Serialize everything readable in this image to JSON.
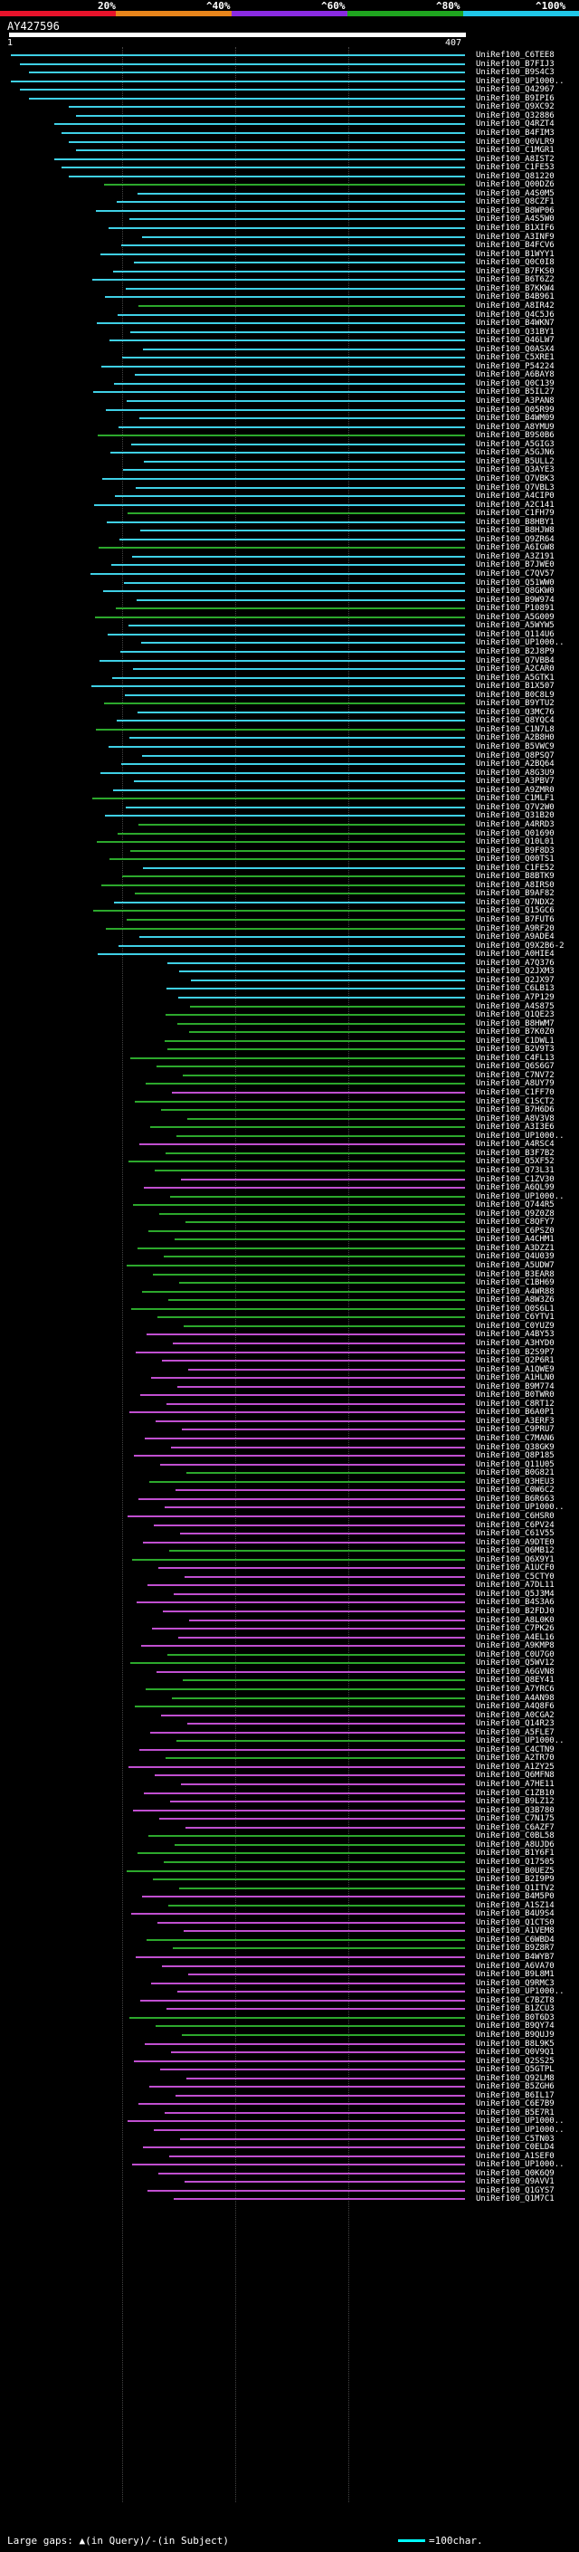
{
  "header": {
    "scale_labels": [
      "20%",
      "^40%",
      "^60%",
      "^80%",
      "^100%"
    ],
    "scale_colors": [
      "#e8132b",
      "#e8851b",
      "#8a2be2",
      "#1fa51f",
      "#20c7e8"
    ]
  },
  "query": {
    "id": "AY427596",
    "start": "1",
    "end": "407"
  },
  "colors": {
    "cyan": "#3fd0e6",
    "green": "#2ca82c",
    "magenta": "#c04fd0"
  },
  "hits": [
    {
      "label": "UniRef100_C6TEE8",
      "color": "cyan"
    },
    {
      "label": "UniRef100_B7FIJ3",
      "color": "cyan"
    },
    {
      "label": "UniRef100_B9S4C3",
      "color": "cyan"
    },
    {
      "label": "UniRef100_UP1000..",
      "color": "cyan"
    },
    {
      "label": "UniRef100_Q42967",
      "color": "cyan"
    },
    {
      "label": "UniRef100_B9IPI6",
      "color": "cyan"
    },
    {
      "label": "UniRef100_Q9XC92",
      "color": "cyan"
    },
    {
      "label": "UniRef100_Q32886",
      "color": "cyan"
    },
    {
      "label": "UniRef100_Q4RZT4",
      "color": "cyan"
    },
    {
      "label": "UniRef100_B4FIM3",
      "color": "cyan"
    },
    {
      "label": "UniRef100_Q0VLR9",
      "color": "cyan"
    },
    {
      "label": "UniRef100_C1MGR1",
      "color": "cyan"
    },
    {
      "label": "UniRef100_A8IST2",
      "color": "cyan"
    },
    {
      "label": "UniRef100_C1FE53",
      "color": "cyan"
    },
    {
      "label": "UniRef100_Q81220",
      "color": "cyan"
    },
    {
      "label": "UniRef100_Q00DZ6",
      "color": "green"
    },
    {
      "label": "UniRef100_A4S0M5",
      "color": "cyan"
    },
    {
      "label": "UniRef100_Q8CZF1",
      "color": "cyan"
    },
    {
      "label": "UniRef100_B8WP06",
      "color": "cyan"
    },
    {
      "label": "UniRef100_A4S5W0",
      "color": "cyan"
    },
    {
      "label": "UniRef100_B1XIF6",
      "color": "cyan"
    },
    {
      "label": "UniRef100_A3INF9",
      "color": "cyan"
    },
    {
      "label": "UniRef100_B4FCV6",
      "color": "cyan"
    },
    {
      "label": "UniRef100_B1WYY1",
      "color": "cyan"
    },
    {
      "label": "UniRef100_Q0C0I8",
      "color": "cyan"
    },
    {
      "label": "UniRef100_B7FKS0",
      "color": "cyan"
    },
    {
      "label": "UniRef100_B6T6Z2",
      "color": "cyan"
    },
    {
      "label": "UniRef100_B7KKW4",
      "color": "cyan"
    },
    {
      "label": "UniRef100_B4B961",
      "color": "cyan"
    },
    {
      "label": "UniRef100_A8IR42",
      "color": "green"
    },
    {
      "label": "UniRef100_Q4C5J6",
      "color": "cyan"
    },
    {
      "label": "UniRef100_B4WKN7",
      "color": "cyan"
    },
    {
      "label": "UniRef100_Q31BY1",
      "color": "cyan"
    },
    {
      "label": "UniRef100_Q46LW7",
      "color": "cyan"
    },
    {
      "label": "UniRef100_Q0ASX4",
      "color": "cyan"
    },
    {
      "label": "UniRef100_C5XRE1",
      "color": "cyan"
    },
    {
      "label": "UniRef100_P54224",
      "color": "cyan"
    },
    {
      "label": "UniRef100_A6BAY8",
      "color": "cyan"
    },
    {
      "label": "UniRef100_Q0C139",
      "color": "cyan"
    },
    {
      "label": "UniRef100_B5IL27",
      "color": "cyan"
    },
    {
      "label": "UniRef100_A3PAN8",
      "color": "cyan"
    },
    {
      "label": "UniRef100_Q05R99",
      "color": "cyan"
    },
    {
      "label": "UniRef100_B4WM09",
      "color": "cyan"
    },
    {
      "label": "UniRef100_A8YMU9",
      "color": "cyan"
    },
    {
      "label": "UniRef100_B9S0B6",
      "color": "green"
    },
    {
      "label": "UniRef100_A5GIG3",
      "color": "cyan"
    },
    {
      "label": "UniRef100_A5GJN6",
      "color": "cyan"
    },
    {
      "label": "UniRef100_B5ULL2",
      "color": "cyan"
    },
    {
      "label": "UniRef100_Q3AYE3",
      "color": "cyan"
    },
    {
      "label": "UniRef100_Q7VBK3",
      "color": "cyan"
    },
    {
      "label": "UniRef100_Q7VBL3",
      "color": "cyan"
    },
    {
      "label": "UniRef100_A4CIP0",
      "color": "cyan"
    },
    {
      "label": "UniRef100_A2C141",
      "color": "cyan"
    },
    {
      "label": "UniRef100_C1FH79",
      "color": "green"
    },
    {
      "label": "UniRef100_B8HBY1",
      "color": "cyan"
    },
    {
      "label": "UniRef100_B8HJW8",
      "color": "cyan"
    },
    {
      "label": "UniRef100_Q9ZR64",
      "color": "cyan"
    },
    {
      "label": "UniRef100_A6IGW8",
      "color": "green"
    },
    {
      "label": "UniRef100_A3Z191",
      "color": "cyan"
    },
    {
      "label": "UniRef100_B7JWE0",
      "color": "cyan"
    },
    {
      "label": "UniRef100_C7QV57",
      "color": "cyan"
    },
    {
      "label": "UniRef100_Q51WW0",
      "color": "cyan"
    },
    {
      "label": "UniRef100_Q8GKW0",
      "color": "cyan"
    },
    {
      "label": "UniRef100_B9W974",
      "color": "cyan"
    },
    {
      "label": "UniRef100_P10891",
      "color": "green"
    },
    {
      "label": "UniRef100_A5G009",
      "color": "green"
    },
    {
      "label": "UniRef100_A5WYW5",
      "color": "cyan"
    },
    {
      "label": "UniRef100_Q114U6",
      "color": "cyan"
    },
    {
      "label": "UniRef100_UP1000..",
      "color": "cyan"
    },
    {
      "label": "UniRef100_B2J8P9",
      "color": "cyan"
    },
    {
      "label": "UniRef100_Q7VBB4",
      "color": "cyan"
    },
    {
      "label": "UniRef100_A2CAR0",
      "color": "cyan"
    },
    {
      "label": "UniRef100_A5GTK1",
      "color": "cyan"
    },
    {
      "label": "UniRef100_B1X507",
      "color": "cyan"
    },
    {
      "label": "UniRef100_B0C8L9",
      "color": "cyan"
    },
    {
      "label": "UniRef100_B9YTU2",
      "color": "green"
    },
    {
      "label": "UniRef100_Q3MC76",
      "color": "cyan"
    },
    {
      "label": "UniRef100_Q8YQC4",
      "color": "cyan"
    },
    {
      "label": "UniRef100_C1N7L8",
      "color": "green"
    },
    {
      "label": "UniRef100_A2B8H0",
      "color": "cyan"
    },
    {
      "label": "UniRef100_B5VWC9",
      "color": "cyan"
    },
    {
      "label": "UniRef100_Q8PSQ7",
      "color": "cyan"
    },
    {
      "label": "UniRef100_A2BQ64",
      "color": "cyan"
    },
    {
      "label": "UniRef100_A8G3U9",
      "color": "cyan"
    },
    {
      "label": "UniRef100_A3PBV7",
      "color": "cyan"
    },
    {
      "label": "UniRef100_A9ZMR0",
      "color": "cyan"
    },
    {
      "label": "UniRef100_C1MLF1",
      "color": "green"
    },
    {
      "label": "UniRef100_Q7V2W0",
      "color": "cyan"
    },
    {
      "label": "UniRef100_Q31B20",
      "color": "cyan"
    },
    {
      "label": "UniRef100_A4RRD3",
      "color": "green"
    },
    {
      "label": "UniRef100_Q01690",
      "color": "green"
    },
    {
      "label": "UniRef100_Q10L01",
      "color": "green"
    },
    {
      "label": "UniRef100_B9F8D3",
      "color": "green"
    },
    {
      "label": "UniRef100_Q00TS1",
      "color": "green"
    },
    {
      "label": "UniRef100_C1FE52",
      "color": "cyan"
    },
    {
      "label": "UniRef100_B8BTK9",
      "color": "green"
    },
    {
      "label": "UniRef100_A8IRS0",
      "color": "green"
    },
    {
      "label": "UniRef100_B9AF82",
      "color": "green"
    },
    {
      "label": "UniRef100_Q7NDX2",
      "color": "cyan"
    },
    {
      "label": "UniRef100_Q15GC6",
      "color": "green"
    },
    {
      "label": "UniRef100_B7FUT6",
      "color": "green"
    },
    {
      "label": "UniRef100_A9RF20",
      "color": "green"
    },
    {
      "label": "UniRef100_A9ADE4",
      "color": "cyan"
    },
    {
      "label": "UniRef100_Q9X2B6-2",
      "color": "cyan"
    },
    {
      "label": "UniRef100_A0HIE4",
      "color": "cyan"
    },
    {
      "label": "UniRef100_A7Q376",
      "color": "cyan"
    },
    {
      "label": "UniRef100_Q2JXM3",
      "color": "cyan"
    },
    {
      "label": "UniRef100_Q2JX97",
      "color": "cyan"
    },
    {
      "label": "UniRef100_C6LB13",
      "color": "cyan"
    },
    {
      "label": "UniRef100_A7P129",
      "color": "cyan"
    },
    {
      "label": "UniRef100_A4S875",
      "color": "green"
    },
    {
      "label": "UniRef100_Q1QE23",
      "color": "green"
    },
    {
      "label": "UniRef100_B8HWM7",
      "color": "green"
    },
    {
      "label": "UniRef100_B7K0Z0",
      "color": "green"
    },
    {
      "label": "UniRef100_C1DWL1",
      "color": "green"
    },
    {
      "label": "UniRef100_B2V9T3",
      "color": "green"
    },
    {
      "label": "UniRef100_C4FL13",
      "color": "green"
    },
    {
      "label": "UniRef100_Q6S6G7",
      "color": "green"
    },
    {
      "label": "UniRef100_C7NV72",
      "color": "green"
    },
    {
      "label": "UniRef100_A8UY79",
      "color": "green"
    },
    {
      "label": "UniRef100_C1FF70",
      "color": "magenta"
    },
    {
      "label": "UniRef100_C1SCT2",
      "color": "green"
    },
    {
      "label": "UniRef100_B7H6D6",
      "color": "green"
    },
    {
      "label": "UniRef100_A8V3V8",
      "color": "green"
    },
    {
      "label": "UniRef100_A3I3E6",
      "color": "green"
    },
    {
      "label": "UniRef100_UP1000..",
      "color": "green"
    },
    {
      "label": "UniRef100_A4RSC4",
      "color": "magenta"
    },
    {
      "label": "UniRef100_B3F7B2",
      "color": "green"
    },
    {
      "label": "UniRef100_Q5XF52",
      "color": "green"
    },
    {
      "label": "UniRef100_Q73L31",
      "color": "green"
    },
    {
      "label": "UniRef100_C1ZV30",
      "color": "magenta"
    },
    {
      "label": "UniRef100_A6QL99",
      "color": "magenta"
    },
    {
      "label": "UniRef100_UP1000..",
      "color": "green"
    },
    {
      "label": "UniRef100_Q744R5",
      "color": "green"
    },
    {
      "label": "UniRef100_Q9Z0Z8",
      "color": "green"
    },
    {
      "label": "UniRef100_C8QFY7",
      "color": "green"
    },
    {
      "label": "UniRef100_C6PSZ0",
      "color": "green"
    },
    {
      "label": "UniRef100_A4CHM1",
      "color": "green"
    },
    {
      "label": "UniRef100_A3DZZ1",
      "color": "green"
    },
    {
      "label": "UniRef100_Q4U039",
      "color": "green"
    },
    {
      "label": "UniRef100_A5UDW7",
      "color": "green"
    },
    {
      "label": "UniRef100_B3EAR8",
      "color": "green"
    },
    {
      "label": "UniRef100_C1BH69",
      "color": "green"
    },
    {
      "label": "UniRef100_A4WR88",
      "color": "green"
    },
    {
      "label": "UniRef100_A8W3Z6",
      "color": "green"
    },
    {
      "label": "UniRef100_Q0S6L1",
      "color": "green"
    },
    {
      "label": "UniRef100_C6YTV1",
      "color": "green"
    },
    {
      "label": "UniRef100_C0YUZ9",
      "color": "green"
    },
    {
      "label": "UniRef100_A4BY53",
      "color": "magenta"
    },
    {
      "label": "UniRef100_A3HYD0",
      "color": "magenta"
    },
    {
      "label": "UniRef100_B2S9P7",
      "color": "magenta"
    },
    {
      "label": "UniRef100_Q2P6R1",
      "color": "magenta"
    },
    {
      "label": "UniRef100_A1QWE9",
      "color": "magenta"
    },
    {
      "label": "UniRef100_A1HLN0",
      "color": "magenta"
    },
    {
      "label": "UniRef100_B9M774",
      "color": "magenta"
    },
    {
      "label": "UniRef100_B0TWR0",
      "color": "magenta"
    },
    {
      "label": "UniRef100_C8RT12",
      "color": "magenta"
    },
    {
      "label": "UniRef100_B6A0P1",
      "color": "magenta"
    },
    {
      "label": "UniRef100_A3ERF3",
      "color": "magenta"
    },
    {
      "label": "UniRef100_C9PRU7",
      "color": "magenta"
    },
    {
      "label": "UniRef100_C7MAN6",
      "color": "magenta"
    },
    {
      "label": "UniRef100_Q38GK9",
      "color": "magenta"
    },
    {
      "label": "UniRef100_Q8P185",
      "color": "magenta"
    },
    {
      "label": "UniRef100_Q11U05",
      "color": "magenta"
    },
    {
      "label": "UniRef100_B0G821",
      "color": "green"
    },
    {
      "label": "UniRef100_Q3HEU3",
      "color": "green"
    },
    {
      "label": "UniRef100_C0W6C2",
      "color": "magenta"
    },
    {
      "label": "UniRef100_B6R663",
      "color": "magenta"
    },
    {
      "label": "UniRef100_UP1000..",
      "color": "magenta"
    },
    {
      "label": "UniRef100_C6HSR0",
      "color": "magenta"
    },
    {
      "label": "UniRef100_C6PV24",
      "color": "magenta"
    },
    {
      "label": "UniRef100_C61V55",
      "color": "magenta"
    },
    {
      "label": "UniRef100_A9DTE0",
      "color": "magenta"
    },
    {
      "label": "UniRef100_Q6MB12",
      "color": "green"
    },
    {
      "label": "UniRef100_Q6X9Y1",
      "color": "green"
    },
    {
      "label": "UniRef100_A1UCF0",
      "color": "magenta"
    },
    {
      "label": "UniRef100_C5CTY0",
      "color": "magenta"
    },
    {
      "label": "UniRef100_A7DL11",
      "color": "magenta"
    },
    {
      "label": "UniRef100_Q5J3M4",
      "color": "magenta"
    },
    {
      "label": "UniRef100_B4S3A6",
      "color": "magenta"
    },
    {
      "label": "UniRef100_B2FDJ0",
      "color": "magenta"
    },
    {
      "label": "UniRef100_A8L0K0",
      "color": "magenta"
    },
    {
      "label": "UniRef100_C7PK26",
      "color": "magenta"
    },
    {
      "label": "UniRef100_A4EL16",
      "color": "magenta"
    },
    {
      "label": "UniRef100_A9KMP8",
      "color": "magenta"
    },
    {
      "label": "UniRef100_C0U7G0",
      "color": "green"
    },
    {
      "label": "UniRef100_Q5WV12",
      "color": "green"
    },
    {
      "label": "UniRef100_A6GVN8",
      "color": "magenta"
    },
    {
      "label": "UniRef100_Q8EY41",
      "color": "green"
    },
    {
      "label": "UniRef100_A7YRC6",
      "color": "green"
    },
    {
      "label": "UniRef100_A4AN98",
      "color": "green"
    },
    {
      "label": "UniRef100_A4Q8F6",
      "color": "green"
    },
    {
      "label": "UniRef100_A0CGA2",
      "color": "magenta"
    },
    {
      "label": "UniRef100_Q14R23",
      "color": "magenta"
    },
    {
      "label": "UniRef100_A5FLE7",
      "color": "magenta"
    },
    {
      "label": "UniRef100_UP1000..",
      "color": "green"
    },
    {
      "label": "UniRef100_C4CTN9",
      "color": "magenta"
    },
    {
      "label": "UniRef100_A2TR70",
      "color": "green"
    },
    {
      "label": "UniRef100_A1ZY25",
      "color": "magenta"
    },
    {
      "label": "UniRef100_Q6MFN8",
      "color": "magenta"
    },
    {
      "label": "UniRef100_A7HE11",
      "color": "magenta"
    },
    {
      "label": "UniRef100_C1ZB10",
      "color": "magenta"
    },
    {
      "label": "UniRef100_B9LZ12",
      "color": "magenta"
    },
    {
      "label": "UniRef100_Q3B780",
      "color": "magenta"
    },
    {
      "label": "UniRef100_C7N175",
      "color": "magenta"
    },
    {
      "label": "UniRef100_C6AZF7",
      "color": "magenta"
    },
    {
      "label": "UniRef100_C0BL58",
      "color": "green"
    },
    {
      "label": "UniRef100_A8UJD6",
      "color": "green"
    },
    {
      "label": "UniRef100_B1Y6F1",
      "color": "green"
    },
    {
      "label": "UniRef100_Q17505",
      "color": "green"
    },
    {
      "label": "UniRef100_B0UEZ5",
      "color": "green"
    },
    {
      "label": "UniRef100_B2I9P9",
      "color": "green"
    },
    {
      "label": "UniRef100_Q1ITV2",
      "color": "green"
    },
    {
      "label": "UniRef100_B4M5P0",
      "color": "magenta"
    },
    {
      "label": "UniRef100_A1SZ14",
      "color": "green"
    },
    {
      "label": "UniRef100_B4U9S4",
      "color": "magenta"
    },
    {
      "label": "UniRef100_Q1CTS0",
      "color": "magenta"
    },
    {
      "label": "UniRef100_A1VEM8",
      "color": "magenta"
    },
    {
      "label": "UniRef100_C6WBD4",
      "color": "green"
    },
    {
      "label": "UniRef100_B9Z8R7",
      "color": "green"
    },
    {
      "label": "UniRef100_B4WYB7",
      "color": "magenta"
    },
    {
      "label": "UniRef100_A6VA70",
      "color": "magenta"
    },
    {
      "label": "UniRef100_B9L8M1",
      "color": "magenta"
    },
    {
      "label": "UniRef100_Q9RMC3",
      "color": "magenta"
    },
    {
      "label": "UniRef100_UP1000..",
      "color": "magenta"
    },
    {
      "label": "UniRef100_C7BZT8",
      "color": "magenta"
    },
    {
      "label": "UniRef100_B1ZCU3",
      "color": "magenta"
    },
    {
      "label": "UniRef100_B0T6D3",
      "color": "green"
    },
    {
      "label": "UniRef100_B9QY74",
      "color": "green"
    },
    {
      "label": "UniRef100_B9QUJ9",
      "color": "green"
    },
    {
      "label": "UniRef100_B8L9K5",
      "color": "magenta"
    },
    {
      "label": "UniRef100_Q0V9Q1",
      "color": "magenta"
    },
    {
      "label": "UniRef100_Q2SS25",
      "color": "magenta"
    },
    {
      "label": "UniRef100_Q5GTPL",
      "color": "magenta"
    },
    {
      "label": "UniRef100_Q92LM8",
      "color": "magenta"
    },
    {
      "label": "UniRef100_B5ZGH6",
      "color": "magenta"
    },
    {
      "label": "UniRef100_B6IL17",
      "color": "magenta"
    },
    {
      "label": "UniRef100_C6E7B9",
      "color": "magenta"
    },
    {
      "label": "UniRef100_B5E7R1",
      "color": "magenta"
    },
    {
      "label": "UniRef100_UP1000..",
      "color": "magenta"
    },
    {
      "label": "UniRef100_UP1000..",
      "color": "magenta"
    },
    {
      "label": "UniRef100_C5TN03",
      "color": "magenta"
    },
    {
      "label": "UniRef100_C0ELD4",
      "color": "magenta"
    },
    {
      "label": "UniRef100_A1SEF0",
      "color": "magenta"
    },
    {
      "label": "UniRef100_UP1000..",
      "color": "magenta"
    },
    {
      "label": "UniRef100_Q0K6Q9",
      "color": "magenta"
    },
    {
      "label": "UniRef100_Q9AVV1",
      "color": "magenta"
    },
    {
      "label": "UniRef100_Q1GYS7",
      "color": "magenta"
    },
    {
      "label": "UniRef100_Q1M7C1",
      "color": "magenta"
    }
  ],
  "footer": {
    "gaps_text": "Large gaps: ▲(in Query)/-(in Subject)",
    "legend_text": "=100char."
  }
}
